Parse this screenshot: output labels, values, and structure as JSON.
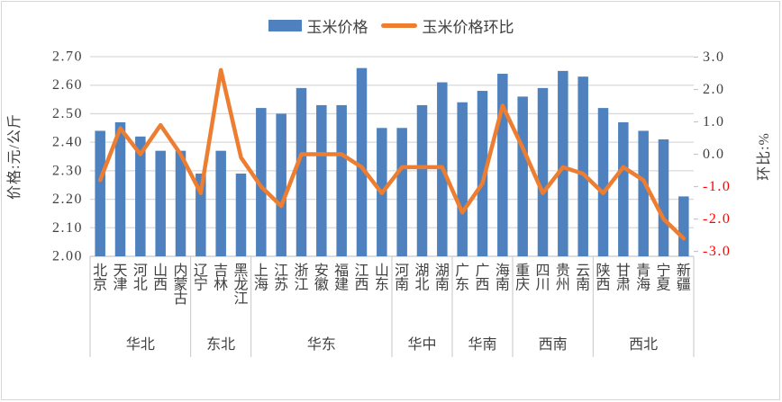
{
  "chart": {
    "legend": [
      {
        "label": "玉米价格",
        "swatch": "bar",
        "color": "#4E81BD"
      },
      {
        "label": "玉米价格环比",
        "swatch": "line",
        "color": "#ED7D31"
      }
    ],
    "left_axis": {
      "title": "价格:元/公斤",
      "ticks": [
        "2.70",
        "2.60",
        "2.50",
        "2.40",
        "2.30",
        "2.20",
        "2.10",
        "2.00"
      ],
      "color": "#404040"
    },
    "right_axis": {
      "title": "环比:%",
      "ticks": [
        "3.0",
        "2.0",
        "1.0",
        "0.0",
        "-1.0",
        "-2.0",
        "-3.0"
      ],
      "color": "#404040",
      "negative_color": "#FF0000"
    },
    "colors": {
      "bar": "#4E81BD",
      "line": "#ED7D31",
      "gridline": "#D9D9D9",
      "axis_line": "#C6C6C6",
      "border": "#D6D6D6",
      "text": "#404040"
    }
  },
  "chart_data": {
    "type": "combo",
    "categories": [
      "北京",
      "天津",
      "河北",
      "山西",
      "内蒙古",
      "辽宁",
      "吉林",
      "黑龙江",
      "上海",
      "江苏",
      "浙江",
      "安徽",
      "福建",
      "江西",
      "山东",
      "河南",
      "湖北",
      "湖南",
      "广东",
      "广西",
      "海南",
      "重庆",
      "四川",
      "贵州",
      "云南",
      "陕西",
      "甘肃",
      "青海",
      "宁夏",
      "新疆"
    ],
    "groups": [
      {
        "label": "华北",
        "count": 5
      },
      {
        "label": "东北",
        "count": 3
      },
      {
        "label": "华东",
        "count": 7
      },
      {
        "label": "华中",
        "count": 3
      },
      {
        "label": "华南",
        "count": 3
      },
      {
        "label": "西南",
        "count": 4
      },
      {
        "label": "西北",
        "count": 5
      }
    ],
    "series": [
      {
        "name": "玉米价格",
        "type": "bar",
        "axis": "left",
        "unit": "元/公斤",
        "values": [
          2.44,
          2.47,
          2.42,
          2.37,
          2.37,
          2.29,
          2.37,
          2.29,
          2.52,
          2.5,
          2.59,
          2.53,
          2.53,
          2.66,
          2.45,
          2.45,
          2.53,
          2.61,
          2.54,
          2.58,
          2.64,
          2.56,
          2.59,
          2.65,
          2.63,
          2.52,
          2.47,
          2.44,
          2.41,
          2.21
        ]
      },
      {
        "name": "玉米价格环比",
        "type": "line",
        "axis": "right",
        "unit": "%",
        "values": [
          -0.8,
          0.8,
          0.0,
          0.9,
          0.0,
          -1.2,
          2.6,
          -0.1,
          -1.0,
          -1.6,
          0.0,
          0.0,
          0.0,
          -0.4,
          -1.2,
          -0.4,
          -0.4,
          -0.4,
          -1.8,
          -0.9,
          1.5,
          0.2,
          -1.2,
          -0.4,
          -0.6,
          -1.2,
          -0.4,
          -0.8,
          -2.0,
          -2.6
        ]
      }
    ],
    "left_axis_range": [
      2.0,
      2.7
    ],
    "right_axis_range": [
      -3.0,
      3.0
    ],
    "grid": true,
    "legend_position": "top"
  }
}
